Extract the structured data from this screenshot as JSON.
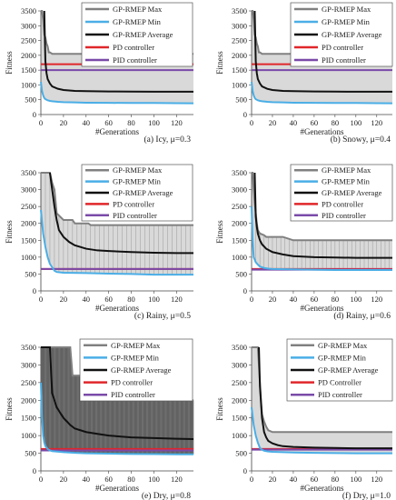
{
  "chart_data": [
    {
      "type": "line",
      "caption": "(a) Icy, μ=0.3",
      "ylabel": "Fitness",
      "xlabel": "#Generations",
      "xlim": [
        0,
        135
      ],
      "ylim": [
        0,
        3500
      ],
      "xticks": [
        0,
        20,
        40,
        60,
        80,
        100,
        120
      ],
      "yticks": [
        0,
        500,
        1000,
        1500,
        2000,
        2500,
        3000,
        3500
      ],
      "pd_controller": 1700,
      "pid_controller": 1500,
      "max_x": [
        0,
        1,
        2,
        3,
        4,
        5,
        6,
        7,
        8,
        10,
        135
      ],
      "max_y": [
        3500,
        3500,
        3200,
        2700,
        2600,
        2400,
        2300,
        2100,
        2100,
        2050,
        2050
      ],
      "min_x": [
        0,
        1,
        2,
        3,
        4,
        6,
        8,
        10,
        15,
        20,
        30,
        40,
        60,
        80,
        100,
        120,
        135
      ],
      "min_y": [
        1100,
        800,
        650,
        560,
        520,
        480,
        460,
        450,
        430,
        420,
        410,
        400,
        395,
        390,
        390,
        385,
        380
      ],
      "avg_x": [
        3,
        4,
        5,
        6,
        8,
        10,
        15,
        20,
        30,
        40,
        60,
        80,
        100,
        120,
        135
      ],
      "avg_y": [
        3500,
        1800,
        1400,
        1200,
        1050,
        950,
        870,
        830,
        800,
        790,
        780,
        775,
        770,
        770,
        770
      ],
      "legend": [
        "GP-RMEP Max",
        "GP-RMEP Min",
        "GP-RMEP Average",
        "PD controller",
        "PID controller"
      ],
      "band_x": [
        0,
        5,
        10,
        135
      ],
      "band_y": [
        1050,
        1000,
        1000,
        1000
      ],
      "band_style": "light"
    },
    {
      "type": "line",
      "caption": "(b) Snowy, μ=0.4",
      "ylabel": "Fitness",
      "xlabel": "#Generations",
      "xlim": [
        0,
        135
      ],
      "ylim": [
        0,
        3500
      ],
      "xticks": [
        0,
        20,
        40,
        60,
        80,
        100,
        120
      ],
      "yticks": [
        0,
        500,
        1000,
        1500,
        2000,
        2500,
        3000,
        3500
      ],
      "pd_controller": 1700,
      "pid_controller": 1500,
      "max_x": [
        0,
        1,
        2,
        3,
        4,
        5,
        6,
        7,
        8,
        10,
        135
      ],
      "max_y": [
        3500,
        3500,
        3200,
        2700,
        2600,
        2400,
        2300,
        2100,
        2100,
        2050,
        2050
      ],
      "min_x": [
        0,
        1,
        2,
        3,
        4,
        6,
        8,
        10,
        15,
        20,
        30,
        40,
        60,
        80,
        100,
        120,
        135
      ],
      "min_y": [
        1100,
        800,
        650,
        560,
        520,
        480,
        460,
        450,
        430,
        420,
        410,
        400,
        395,
        390,
        390,
        385,
        380
      ],
      "avg_x": [
        3,
        4,
        5,
        6,
        8,
        10,
        15,
        20,
        30,
        40,
        60,
        80,
        100,
        120,
        135
      ],
      "avg_y": [
        3500,
        1800,
        1400,
        1200,
        1050,
        950,
        870,
        830,
        800,
        790,
        780,
        775,
        770,
        770,
        770
      ],
      "legend": [
        "GP-RMEP Max",
        "GP-RMEP Min",
        "GP-RMEP Average",
        "PD controller",
        "PID controller"
      ],
      "band_x": [
        0,
        5,
        10,
        135
      ],
      "band_y": [
        1050,
        1000,
        1000,
        1000
      ],
      "band_style": "light"
    },
    {
      "type": "line",
      "caption": "(c) Rainy, μ=0.5",
      "ylabel": "Fitness",
      "xlabel": "#Generations",
      "xlim": [
        0,
        135
      ],
      "ylim": [
        0,
        3500
      ],
      "xticks": [
        0,
        20,
        40,
        60,
        80,
        100,
        120
      ],
      "yticks": [
        0,
        500,
        1000,
        1500,
        2000,
        2500,
        3000,
        3500
      ],
      "pd_controller": 650,
      "pid_controller": 650,
      "max_x": [
        0,
        8,
        10,
        12,
        14,
        20,
        28,
        30,
        42,
        44,
        60,
        120,
        135
      ],
      "max_y": [
        3500,
        3500,
        3200,
        3000,
        2300,
        2100,
        2100,
        2000,
        2000,
        1950,
        1950,
        1950,
        1950
      ],
      "min_x": [
        0,
        2,
        4,
        6,
        8,
        10,
        12,
        14,
        20,
        40,
        60,
        80,
        100,
        120,
        135
      ],
      "min_y": [
        2400,
        1700,
        1300,
        1000,
        800,
        700,
        600,
        560,
        540,
        530,
        510,
        500,
        480,
        480,
        480
      ],
      "avg_x": [
        8,
        10,
        12,
        14,
        16,
        20,
        25,
        30,
        40,
        50,
        60,
        80,
        100,
        120,
        135
      ],
      "avg_y": [
        3500,
        3000,
        2500,
        2100,
        1800,
        1600,
        1450,
        1350,
        1250,
        1200,
        1180,
        1150,
        1130,
        1120,
        1120
      ],
      "legend": [
        "GP-RMEP Max",
        "GP-RMEP Min",
        "GP-RMEP Average",
        "PD controller",
        "PID controller"
      ],
      "band_style": "hatched"
    },
    {
      "type": "line",
      "caption": "(d) Rainy, μ=0.6",
      "ylabel": "Fitness",
      "xlabel": "#Generations",
      "xlim": [
        0,
        135
      ],
      "ylim": [
        0,
        3500
      ],
      "xticks": [
        0,
        20,
        40,
        60,
        80,
        100,
        120
      ],
      "yticks": [
        0,
        500,
        1000,
        1500,
        2000,
        2500,
        3000,
        3500
      ],
      "pd_controller": 650,
      "pid_controller": 630,
      "max_x": [
        0,
        1,
        2,
        3,
        4,
        5,
        6,
        8,
        12,
        14,
        30,
        40,
        135
      ],
      "max_y": [
        3500,
        3500,
        3000,
        2600,
        2300,
        2000,
        1800,
        1700,
        1650,
        1600,
        1600,
        1500,
        1500
      ],
      "min_x": [
        0,
        1,
        2,
        4,
        6,
        8,
        10,
        12,
        16,
        20,
        40,
        60,
        80,
        100,
        120,
        135
      ],
      "min_y": [
        2500,
        1500,
        1000,
        850,
        780,
        720,
        700,
        680,
        660,
        650,
        640,
        630,
        620,
        620,
        620,
        620
      ],
      "avg_x": [
        3,
        4,
        5,
        6,
        8,
        10,
        14,
        20,
        30,
        40,
        60,
        80,
        100,
        120,
        135
      ],
      "avg_y": [
        3500,
        2200,
        1900,
        1700,
        1500,
        1380,
        1250,
        1150,
        1080,
        1030,
        1000,
        990,
        980,
        980,
        980
      ],
      "legend": [
        "GP-RMEP Max",
        "GP-RMEP Min",
        "GP-RMEP Average",
        "PD controller",
        "PID controller"
      ],
      "band_style": "hatched"
    },
    {
      "type": "line",
      "caption": "(e) Dry, μ=0.8",
      "ylabel": "Fitness",
      "xlabel": "#Generations",
      "xlim": [
        0,
        135
      ],
      "ylim": [
        0,
        3500
      ],
      "xticks": [
        0,
        20,
        40,
        60,
        80,
        100,
        120
      ],
      "yticks": [
        0,
        500,
        1000,
        1500,
        2000,
        2500,
        3000,
        3500
      ],
      "pd_controller": 620,
      "pid_controller": 580,
      "max_x": [
        0,
        26,
        28,
        36,
        38,
        50,
        52,
        60,
        62,
        135
      ],
      "max_y": [
        3500,
        3500,
        2700,
        2700,
        2500,
        2500,
        2200,
        2200,
        2000,
        2000
      ],
      "min_x": [
        0,
        1,
        2,
        3,
        4,
        6,
        8,
        10,
        20,
        30,
        40,
        60,
        80,
        100,
        120,
        135
      ],
      "min_y": [
        2500,
        1500,
        1000,
        800,
        700,
        620,
        580,
        560,
        530,
        510,
        500,
        490,
        480,
        475,
        470,
        470
      ],
      "avg_x": [
        0,
        8,
        10,
        14,
        20,
        26,
        30,
        40,
        50,
        60,
        80,
        100,
        120,
        135
      ],
      "avg_y": [
        3500,
        3500,
        2200,
        1800,
        1500,
        1300,
        1200,
        1100,
        1050,
        1000,
        950,
        930,
        910,
        900
      ],
      "legend": [
        "GP-RMEP Max",
        "GP-RMEP Min",
        "GP-RMEP Average",
        "PD controller",
        "PID controller"
      ],
      "band_style": "dark"
    },
    {
      "type": "line",
      "caption": "(f) Dry, μ=1.0",
      "ylabel": "Fitness",
      "xlabel": "#Generations",
      "xlim": [
        0,
        135
      ],
      "ylim": [
        0,
        3500
      ],
      "xticks": [
        0,
        20,
        40,
        60,
        80,
        100,
        120
      ],
      "yticks": [
        0,
        500,
        1000,
        1500,
        2000,
        2500,
        3000,
        3500
      ],
      "pd_controller": 620,
      "pid_controller": 600,
      "max_x": [
        0,
        6,
        7,
        8,
        9,
        10,
        12,
        14,
        16,
        20,
        40,
        80,
        135
      ],
      "max_y": [
        3500,
        3500,
        3000,
        2500,
        2000,
        1600,
        1400,
        1250,
        1150,
        1100,
        1100,
        1100,
        1100
      ],
      "min_x": [
        0,
        2,
        4,
        6,
        8,
        10,
        12,
        14,
        16,
        20,
        40,
        60,
        80,
        100,
        120,
        135
      ],
      "min_y": [
        1800,
        1300,
        1000,
        800,
        650,
        600,
        570,
        560,
        550,
        540,
        520,
        510,
        505,
        500,
        500,
        500
      ],
      "avg_x": [
        7,
        8,
        10,
        12,
        14,
        16,
        20,
        25,
        30,
        40,
        60,
        80,
        100,
        120,
        135
      ],
      "avg_y": [
        3500,
        2400,
        1500,
        1100,
        950,
        850,
        780,
        730,
        700,
        680,
        660,
        650,
        640,
        640,
        640
      ],
      "legend": [
        "GP-RMEP Max",
        "GP-RMEP Min",
        "GP-RMEP Average",
        "PD Controller",
        "PID controller"
      ],
      "band_style": "light"
    }
  ],
  "colors": {
    "max": "#808080",
    "min": "#4aaee6",
    "avg": "#111111",
    "pd": "#e0262a",
    "pid": "#7a4aa8",
    "band_light": "#d9d9d9",
    "band_dark": "#7b7b7b"
  }
}
